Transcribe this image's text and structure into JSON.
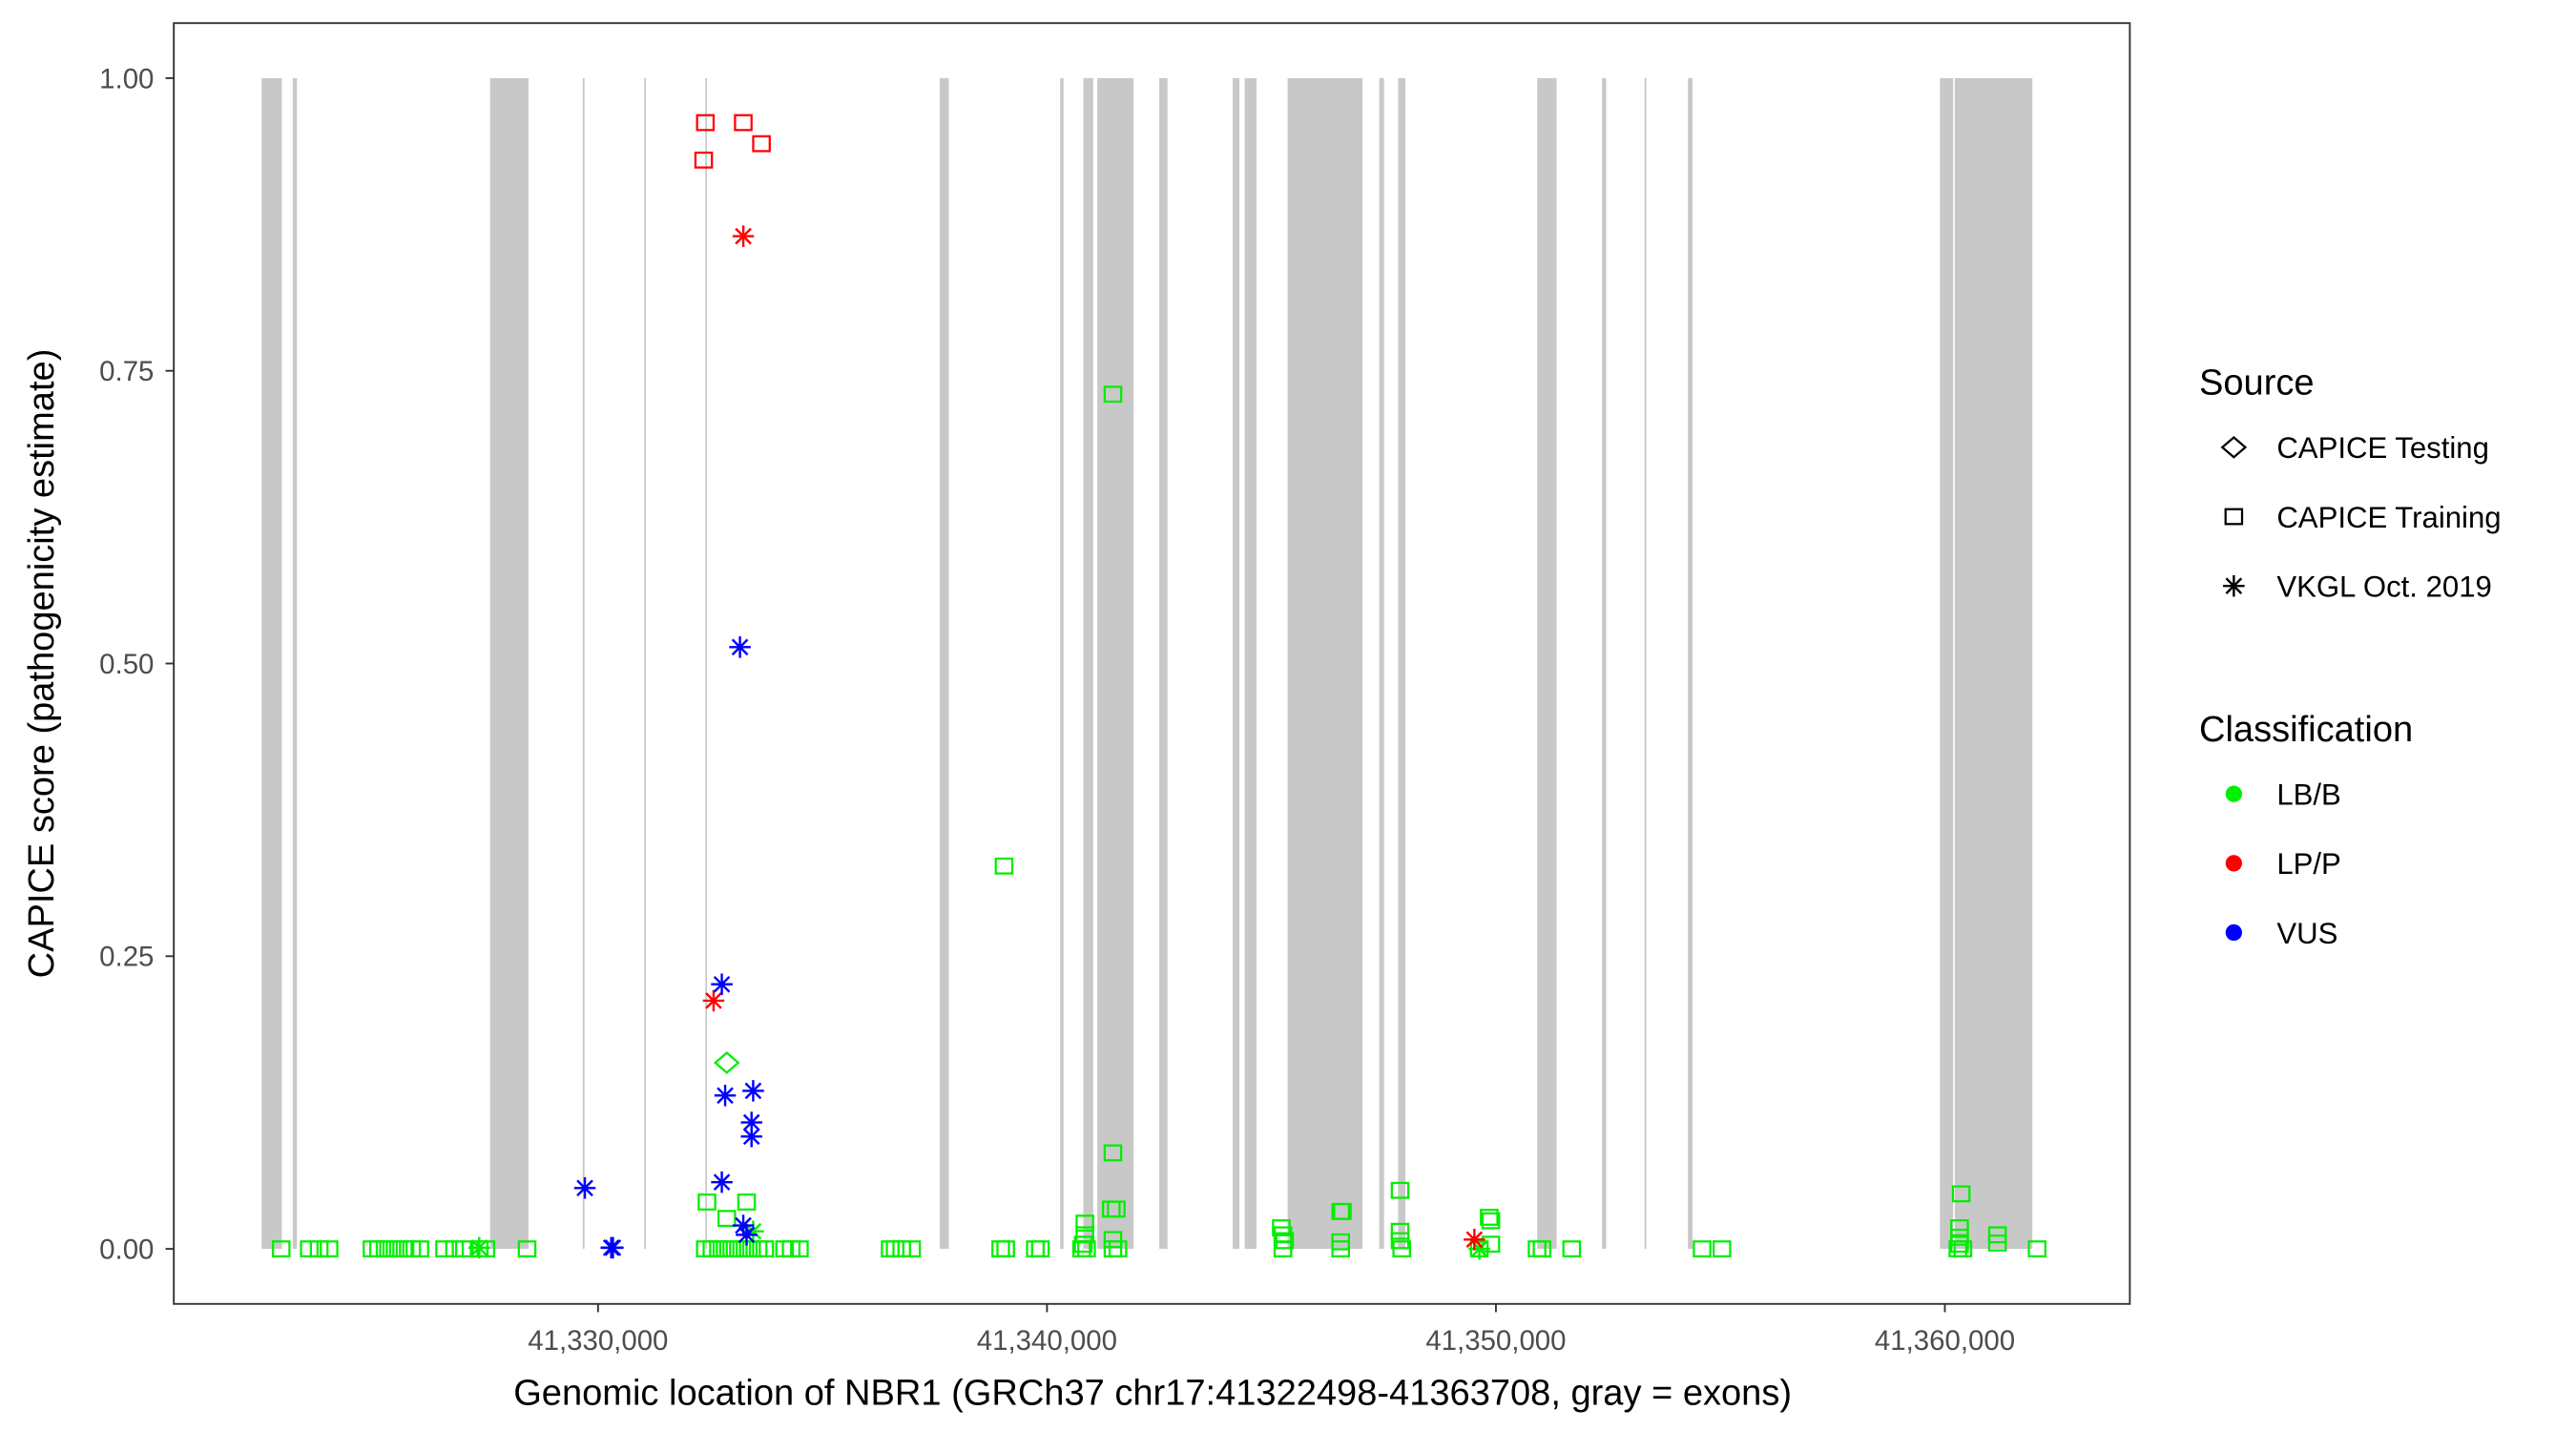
{
  "chart_data": {
    "type": "scatter",
    "title": "",
    "xlabel": "Genomic location of NBR1 (GRCh37 chr17:41322498-41363708, gray = exons)",
    "ylabel": "CAPICE score (pathogenicity estimate)",
    "xlim": [
      41320550,
      41364120
    ],
    "ylim": [
      -0.047,
      1.047
    ],
    "x_ticks": [
      41330000,
      41340000,
      41350000,
      41360000
    ],
    "x_tick_labels": [
      "41,330,000",
      "41,340,000",
      "41,350,000",
      "41,360,000"
    ],
    "y_ticks": [
      0,
      0.25,
      0.5,
      0.75,
      1.0
    ],
    "y_tick_labels": [
      "0.00",
      "0.25",
      "0.50",
      "0.75",
      "1.00"
    ],
    "grid": false,
    "exon_color": "#c8c8c8",
    "exons": [
      [
        41322507,
        41322956
      ],
      [
        41323199,
        41323294
      ],
      [
        41327596,
        41328452
      ],
      [
        41329658,
        41329699
      ],
      [
        41331029,
        41331066
      ],
      [
        41332390,
        41332426
      ],
      [
        41337610,
        41337812
      ],
      [
        41340294,
        41340368
      ],
      [
        41340809,
        41341029
      ],
      [
        41341121,
        41341930
      ],
      [
        41342500,
        41342684
      ],
      [
        41344136,
        41344287
      ],
      [
        41344404,
        41344669
      ],
      [
        41345360,
        41347029
      ],
      [
        41347401,
        41347507
      ],
      [
        41347820,
        41347982
      ],
      [
        41350919,
        41351353
      ],
      [
        41352364,
        41352456
      ],
      [
        41353309,
        41353349
      ],
      [
        41354276,
        41354379
      ],
      [
        41359890,
        41360184
      ],
      [
        41360221,
        41361949
      ]
    ],
    "legend": {
      "placement": "right",
      "source_title": "Source",
      "sources": [
        {
          "label": "CAPICE Testing",
          "shape": "diamond"
        },
        {
          "label": "CAPICE Training",
          "shape": "square"
        },
        {
          "label": "VKGL Oct. 2019",
          "shape": "asterisk"
        }
      ],
      "class_title": "Classification",
      "classes": [
        {
          "label": "LB/B",
          "color": "#00ee00"
        },
        {
          "label": "LP/P",
          "color": "#ff0000"
        },
        {
          "label": "VUS",
          "color": "#0000ff"
        }
      ]
    },
    "point_fields": [
      "position",
      "score",
      "source_index",
      "class_index"
    ],
    "points": [
      [
        41332390,
        0.962,
        1,
        1
      ],
      [
        41333235,
        0.962,
        1,
        1
      ],
      [
        41333640,
        0.944,
        1,
        1
      ],
      [
        41332353,
        0.93,
        1,
        1
      ],
      [
        41333235,
        0.865,
        2,
        1
      ],
      [
        41332573,
        0.212,
        2,
        1
      ],
      [
        41349520,
        0.008,
        2,
        1
      ],
      [
        41333161,
        0.514,
        2,
        2
      ],
      [
        41332757,
        0.226,
        2,
        2
      ],
      [
        41332831,
        0.131,
        2,
        2
      ],
      [
        41333455,
        0.135,
        2,
        2
      ],
      [
        41333419,
        0.108,
        2,
        2
      ],
      [
        41333419,
        0.096,
        2,
        2
      ],
      [
        41329706,
        0.052,
        2,
        2
      ],
      [
        41332757,
        0.057,
        2,
        2
      ],
      [
        41333235,
        0.02,
        2,
        2
      ],
      [
        41333308,
        0.012,
        2,
        2
      ],
      [
        41330331,
        0.001,
        2,
        2
      ],
      [
        41330294,
        0.001,
        2,
        2
      ],
      [
        41332867,
        0.159,
        0,
        0
      ],
      [
        41327353,
        0.001,
        2,
        0
      ],
      [
        41333455,
        0.015,
        2,
        0
      ],
      [
        41349630,
        0.0,
        2,
        0
      ],
      [
        41341469,
        0.73,
        1,
        0
      ],
      [
        41339043,
        0.327,
        1,
        0
      ],
      [
        41341469,
        0.082,
        1,
        0
      ],
      [
        41347865,
        0.05,
        1,
        0
      ],
      [
        41360364,
        0.047,
        1,
        0
      ],
      [
        41332426,
        0.04,
        1,
        0
      ],
      [
        41333308,
        0.04,
        1,
        0
      ],
      [
        41332867,
        0.026,
        1,
        0
      ],
      [
        41341432,
        0.034,
        1,
        0
      ],
      [
        41341543,
        0.034,
        1,
        0
      ],
      [
        41346542,
        0.032,
        1,
        0
      ],
      [
        41346580,
        0.032,
        1,
        0
      ],
      [
        41349850,
        0.027,
        1,
        0
      ],
      [
        41349887,
        0.024,
        1,
        0
      ],
      [
        41340844,
        0.022,
        1,
        0
      ],
      [
        41345219,
        0.018,
        1,
        0
      ],
      [
        41360327,
        0.018,
        1,
        0
      ],
      [
        41347865,
        0.015,
        1,
        0
      ],
      [
        41340844,
        0.012,
        1,
        0
      ],
      [
        41345255,
        0.012,
        1,
        0
      ],
      [
        41361172,
        0.012,
        1,
        0
      ],
      [
        41360327,
        0.01,
        1,
        0
      ],
      [
        41341469,
        0.008,
        1,
        0
      ],
      [
        41345292,
        0.007,
        1,
        0
      ],
      [
        41347865,
        0.007,
        1,
        0
      ],
      [
        41346542,
        0.006,
        1,
        0
      ],
      [
        41361172,
        0.005,
        1,
        0
      ],
      [
        41360327,
        0.004,
        1,
        0
      ],
      [
        41340807,
        0.004,
        1,
        0
      ],
      [
        41349887,
        0.004,
        1,
        0
      ],
      [
        41322942,
        0,
        1,
        0
      ],
      [
        41323567,
        0,
        1,
        0
      ],
      [
        41323788,
        0,
        1,
        0
      ],
      [
        41324008,
        0,
        1,
        0
      ],
      [
        41324964,
        0,
        1,
        0
      ],
      [
        41325111,
        0,
        1,
        0
      ],
      [
        41325258,
        0,
        1,
        0
      ],
      [
        41325405,
        0,
        1,
        0
      ],
      [
        41325552,
        0,
        1,
        0
      ],
      [
        41325699,
        0,
        1,
        0
      ],
      [
        41325846,
        0,
        1,
        0
      ],
      [
        41326030,
        0,
        1,
        0
      ],
      [
        41326581,
        0,
        1,
        0
      ],
      [
        41326802,
        0,
        1,
        0
      ],
      [
        41327022,
        0,
        1,
        0
      ],
      [
        41327353,
        0,
        1,
        0
      ],
      [
        41327500,
        0,
        1,
        0
      ],
      [
        41328419,
        0,
        1,
        0
      ],
      [
        41332389,
        0,
        1,
        0
      ],
      [
        41332536,
        0,
        1,
        0
      ],
      [
        41332683,
        0,
        1,
        0
      ],
      [
        41332831,
        0,
        1,
        0
      ],
      [
        41332978,
        0,
        1,
        0
      ],
      [
        41333125,
        0,
        1,
        0
      ],
      [
        41333272,
        0,
        1,
        0
      ],
      [
        41333419,
        0,
        1,
        0
      ],
      [
        41333566,
        0,
        1,
        0
      ],
      [
        41333713,
        0,
        1,
        0
      ],
      [
        41334154,
        0,
        1,
        0
      ],
      [
        41334301,
        0,
        1,
        0
      ],
      [
        41334485,
        0,
        1,
        0
      ],
      [
        41336507,
        0,
        1,
        0
      ],
      [
        41336617,
        0,
        1,
        0
      ],
      [
        41336764,
        0,
        1,
        0
      ],
      [
        41336984,
        0,
        1,
        0
      ],
      [
        41338969,
        0,
        1,
        0
      ],
      [
        41339080,
        0,
        1,
        0
      ],
      [
        41339741,
        0,
        1,
        0
      ],
      [
        41339852,
        0,
        1,
        0
      ],
      [
        41340771,
        0,
        1,
        0
      ],
      [
        41340881,
        0,
        1,
        0
      ],
      [
        41341469,
        0,
        1,
        0
      ],
      [
        41341579,
        0,
        1,
        0
      ],
      [
        41345255,
        0,
        1,
        0
      ],
      [
        41346542,
        0,
        1,
        0
      ],
      [
        41347902,
        0,
        1,
        0
      ],
      [
        41349630,
        0,
        1,
        0
      ],
      [
        41350916,
        0,
        1,
        0
      ],
      [
        41351027,
        0,
        1,
        0
      ],
      [
        41351688,
        0,
        1,
        0
      ],
      [
        41354592,
        0,
        1,
        0
      ],
      [
        41355034,
        0,
        1,
        0
      ],
      [
        41360290,
        0,
        1,
        0
      ],
      [
        41360401,
        0,
        1,
        0
      ],
      [
        41362055,
        0,
        1,
        0
      ]
    ]
  }
}
